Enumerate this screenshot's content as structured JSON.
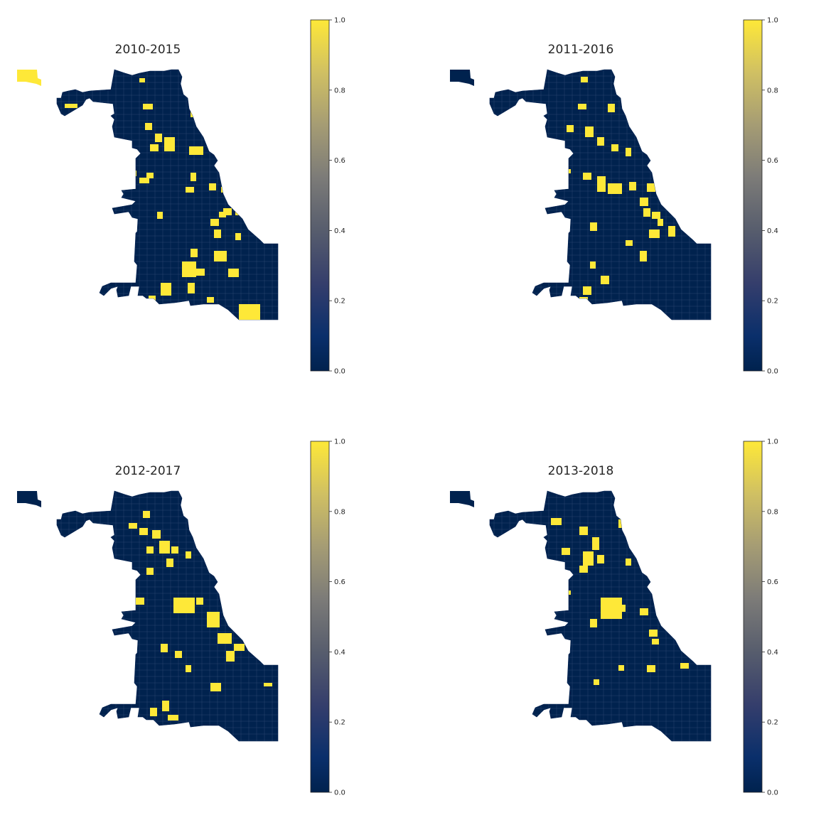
{
  "figure": {
    "panels": [
      {
        "id": "p2010",
        "title": "2010-2015",
        "highlight_set": "a"
      },
      {
        "id": "p2011",
        "title": "2011-2016",
        "highlight_set": "b"
      },
      {
        "id": "p2012",
        "title": "2012-2017",
        "highlight_set": "c"
      },
      {
        "id": "p2013",
        "title": "2013-2018",
        "highlight_set": "d"
      }
    ],
    "colorbar": {
      "ticks": [
        "0.0",
        "0.2",
        "0.4",
        "0.6",
        "0.8",
        "1.0"
      ],
      "range": [
        0.0,
        1.0
      ],
      "colormap": "cividis"
    },
    "colors": {
      "low": "#00224e",
      "mid": "#7b7b78",
      "high": "#fee838",
      "background": "#ffffff"
    }
  }
}
